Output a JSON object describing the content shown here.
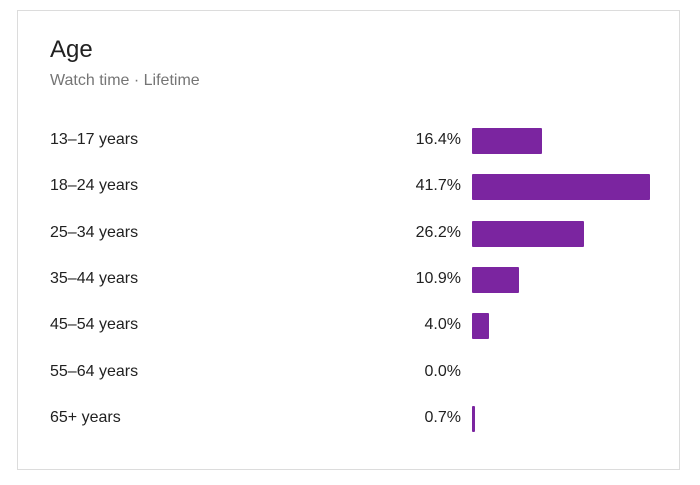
{
  "card": {
    "title": "Age",
    "subtitle": "Watch time · Lifetime"
  },
  "colors": {
    "bar": "#7b25a0"
  },
  "chart_data": {
    "type": "bar",
    "orientation": "horizontal",
    "title": "Age",
    "subtitle": "Watch time · Lifetime",
    "categories": [
      "13–17 years",
      "18–24 years",
      "25–34 years",
      "35–44 years",
      "45–54 years",
      "55–64 years",
      "65+ years"
    ],
    "values": [
      16.4,
      41.7,
      26.2,
      10.9,
      4.0,
      0.0,
      0.7
    ],
    "value_labels": [
      "16.4%",
      "41.7%",
      "26.2%",
      "10.9%",
      "4.0%",
      "0.0%",
      "0.7%"
    ],
    "unit": "%",
    "grid": false,
    "legend": "none"
  }
}
